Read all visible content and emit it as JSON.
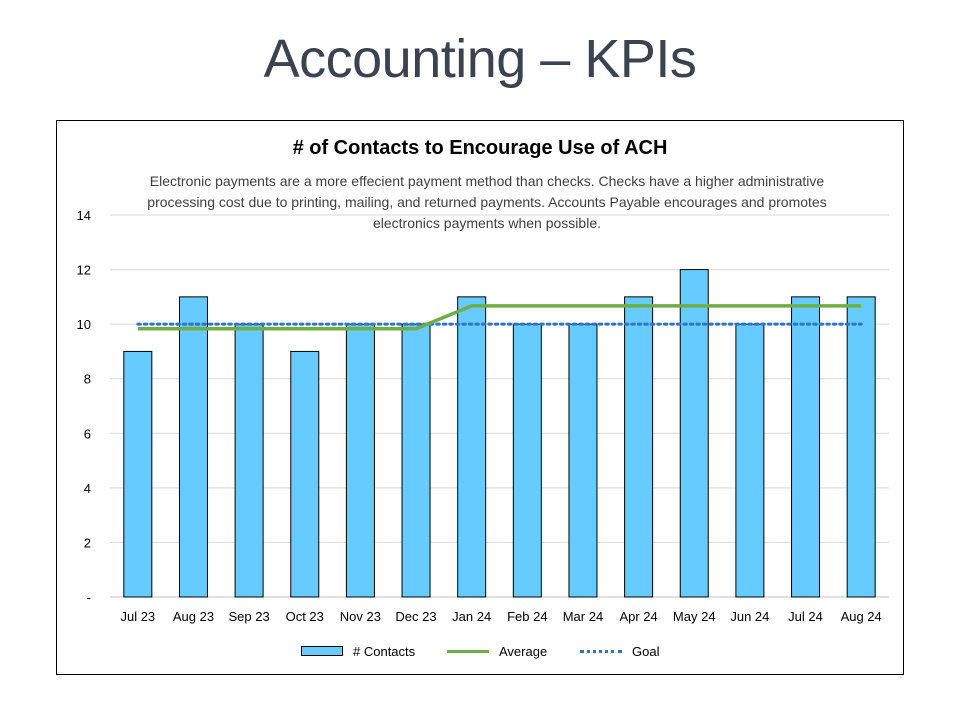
{
  "slide": {
    "title": "Accounting – KPIs"
  },
  "chart_data": {
    "type": "bar",
    "title": "# of Contacts to Encourage Use of ACH",
    "subtitle": "Electronic payments are a more effecient payment method than checks. Checks have a higher administrative processing cost due to printing, mailing, and returned payments. Accounts Payable encourages and promotes electronics payments when possible.",
    "categories": [
      "Jul 23",
      "Aug 23",
      "Sep 23",
      "Oct 23",
      "Nov 23",
      "Dec 23",
      "Jan 24",
      "Feb 24",
      "Mar 24",
      "Apr 24",
      "May 24",
      "Jun 24",
      "Jul 24",
      "Aug 24"
    ],
    "series": [
      {
        "name": "# Contacts",
        "kind": "bar",
        "color": "#66ccff",
        "values": [
          9,
          11,
          10,
          9,
          10,
          10,
          11,
          10,
          10,
          11,
          12,
          10,
          11,
          11
        ]
      },
      {
        "name": "Average",
        "kind": "line",
        "color": "#70ad47",
        "values": [
          9.83,
          9.83,
          9.83,
          9.83,
          9.83,
          9.83,
          10.67,
          10.67,
          10.67,
          10.67,
          10.67,
          10.67,
          10.67,
          10.67
        ]
      },
      {
        "name": "Goal",
        "kind": "dotted-line",
        "color": "#2e75c6",
        "values": [
          10,
          10,
          10,
          10,
          10,
          10,
          10,
          10,
          10,
          10,
          10,
          10,
          10,
          10
        ]
      }
    ],
    "ylim": [
      0,
      14
    ],
    "yticks": [
      0,
      2,
      4,
      6,
      8,
      10,
      12,
      14
    ],
    "ytick_labels": [
      "-",
      "2",
      "4",
      "6",
      "8",
      "10",
      "12",
      "14"
    ],
    "xlabel": "",
    "ylabel": "",
    "grid": true,
    "legend_position": "bottom"
  },
  "legend": {
    "contacts_label": "# Contacts",
    "average_label": "Average",
    "goal_label": "Goal"
  }
}
